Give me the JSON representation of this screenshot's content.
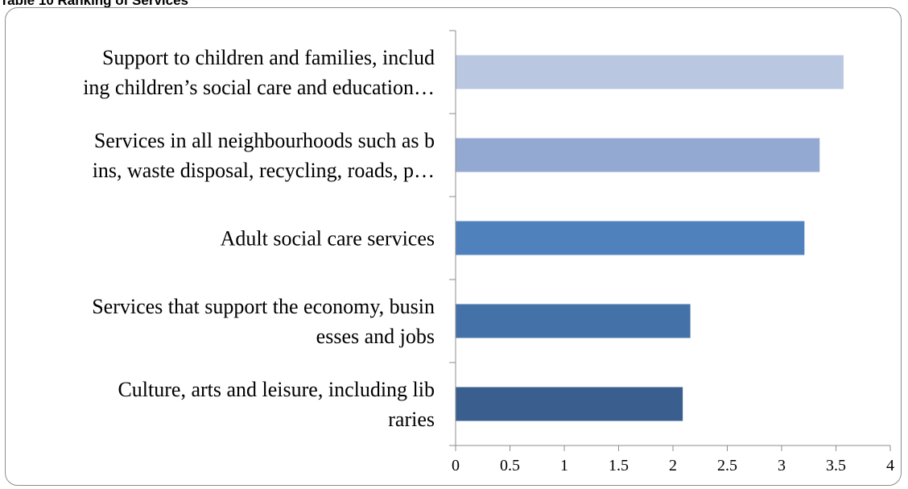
{
  "heading": "Table 10 Ranking of Services",
  "chart_data": {
    "type": "bar",
    "orientation": "horizontal",
    "title": "",
    "xlabel": "",
    "ylabel": "",
    "xlim": [
      0,
      4
    ],
    "xticks": [
      "0",
      "0.5",
      "1",
      "1.5",
      "2",
      "2.5",
      "3",
      "3.5",
      "4"
    ],
    "grid": false,
    "legend": "none",
    "categories": [
      {
        "lines": [
          "Support to children and families, includ",
          "ing children’s social care and education…"
        ],
        "value": 3.57,
        "color": "#b9c7e0"
      },
      {
        "lines": [
          "Services in all neighbourhoods such as b",
          "ins, waste disposal, recycling, roads, p…"
        ],
        "value": 3.35,
        "color": "#93a9d2"
      },
      {
        "lines": [
          "Adult social care services"
        ],
        "value": 3.21,
        "color": "#4f81bd"
      },
      {
        "lines": [
          "Services that support the economy, busin",
          "esses and jobs"
        ],
        "value": 2.16,
        "color": "#4472a8"
      },
      {
        "lines": [
          "Culture, arts and leisure, including lib",
          "raries"
        ],
        "value": 2.09,
        "color": "#3a5f8e"
      }
    ]
  }
}
